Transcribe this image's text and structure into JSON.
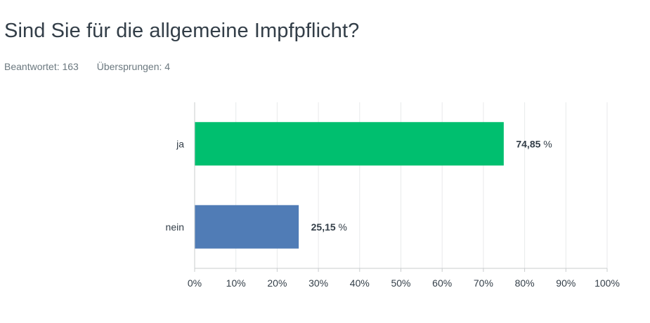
{
  "question": {
    "title": "Sind Sie für die allgemeine Impfpflicht?",
    "answered": "Beantwortet: 163",
    "skipped": "Übersprungen: 4"
  },
  "chart_data": {
    "type": "bar",
    "orientation": "horizontal",
    "categories": [
      "ja",
      "nein"
    ],
    "values": [
      74.85,
      25.15
    ],
    "value_labels": [
      "74,85 %",
      "25,15 %"
    ],
    "colors": [
      "#00bf6f",
      "#507cb6"
    ],
    "xlim": [
      0,
      100
    ],
    "xticks": [
      "0%",
      "10%",
      "20%",
      "30%",
      "40%",
      "50%",
      "60%",
      "70%",
      "80%",
      "90%",
      "100%"
    ],
    "grid": true
  }
}
